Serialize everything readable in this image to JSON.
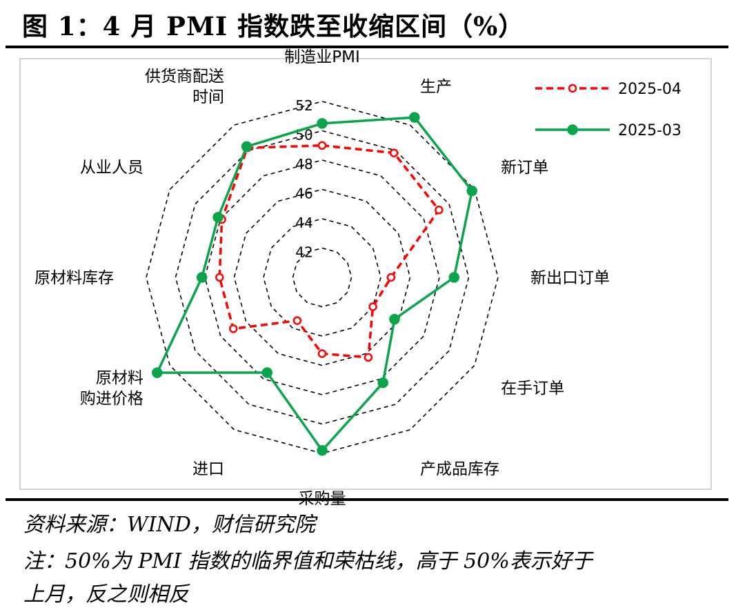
{
  "title": "图 1：4 月 PMI 指数跌至收缩区间（%）",
  "notes": {
    "source": "资料来源：WIND，财信研究院",
    "line1": "注：50%为 PMI 指数的临界值和荣枯线，高于 50%表示好于",
    "line2": "上月，反之则相反"
  },
  "chart_data": {
    "type": "radar",
    "categories": [
      "制造业PMI",
      "生产",
      "新订单",
      "新出口订单",
      "在手订单",
      "产成品库存",
      "采购量",
      "进口",
      "原材料购进价格",
      "原材料库存",
      "从业人员",
      "供货商配送时间"
    ],
    "category_display": [
      [
        "制造业PMI"
      ],
      [
        "生产"
      ],
      [
        "新订单"
      ],
      [
        "新出口订单"
      ],
      [
        "在手订单"
      ],
      [
        "产成品库存"
      ],
      [
        "采购量"
      ],
      [
        "进口"
      ],
      [
        "原材料",
        "购进价格"
      ],
      [
        "原材料库存"
      ],
      [
        "从业人员"
      ],
      [
        "供货商配送",
        "时间"
      ]
    ],
    "rlim": [
      40,
      52
    ],
    "ticks": [
      "42",
      "44",
      "46",
      "48",
      "50",
      "52"
    ],
    "tick_values": [
      42,
      44,
      46,
      48,
      50,
      52
    ],
    "series": [
      {
        "name": "2025-04",
        "values": [
          49.0,
          49.8,
          49.2,
          44.7,
          44.0,
          46.3,
          45.2,
          43.4,
          47.0,
          47.0,
          47.9,
          50.2
        ],
        "color": "#ff0000",
        "dashed": true,
        "marker": "open-circle"
      },
      {
        "name": "2025-03",
        "values": [
          50.5,
          52.6,
          51.8,
          49.0,
          45.7,
          48.3,
          51.8,
          47.5,
          53.0,
          48.2,
          48.2,
          50.3
        ],
        "color": "#0aa54a",
        "dashed": false,
        "marker": "filled-circle"
      }
    ],
    "legend_position": "top-right",
    "grid": true
  }
}
